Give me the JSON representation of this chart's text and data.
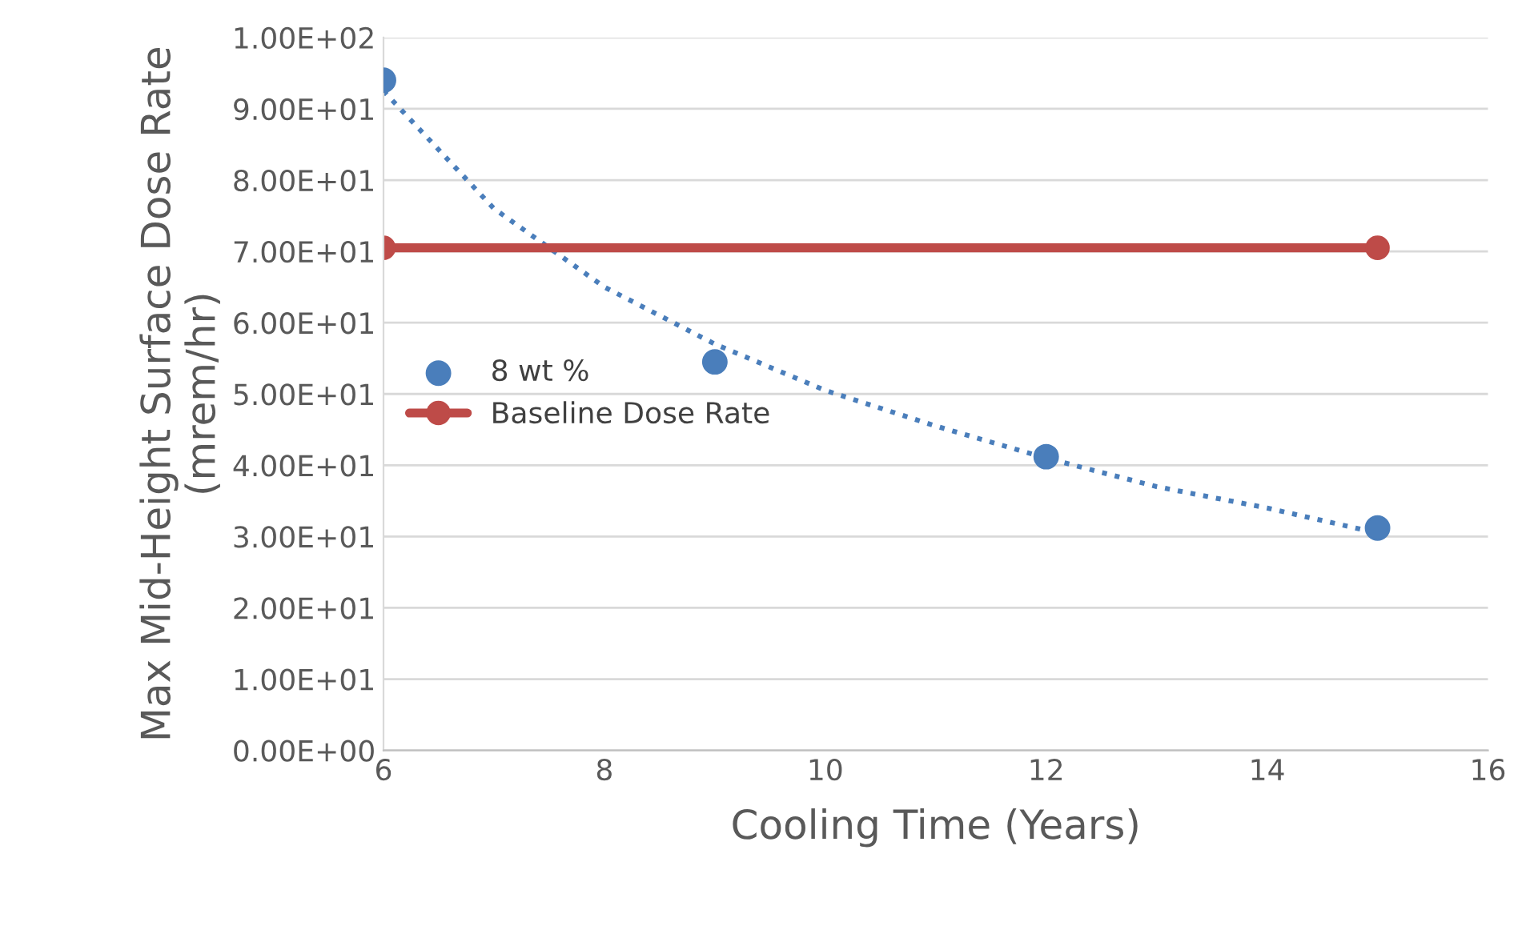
{
  "chart_data": {
    "type": "scatter",
    "xlabel": "Cooling Time (Years)",
    "ylabel": "Max Mid-Height Surface Dose Rate (mrem/hr)",
    "xlim": [
      6,
      16
    ],
    "xticks": [
      6,
      8,
      10,
      12,
      14,
      16
    ],
    "ylim": [
      0,
      100
    ],
    "yticks": [
      {
        "value": 0,
        "label": "0.00E+00"
      },
      {
        "value": 10,
        "label": "1.00E+01"
      },
      {
        "value": 20,
        "label": "2.00E+01"
      },
      {
        "value": 30,
        "label": "3.00E+01"
      },
      {
        "value": 40,
        "label": "4.00E+01"
      },
      {
        "value": 50,
        "label": "5.00E+01"
      },
      {
        "value": 60,
        "label": "6.00E+01"
      },
      {
        "value": 70,
        "label": "7.00E+01"
      },
      {
        "value": 80,
        "label": "8.00E+01"
      },
      {
        "value": 90,
        "label": "9.00E+01"
      },
      {
        "value": 100,
        "label": "1.00E+02"
      }
    ],
    "grid": "y",
    "legend": "center left",
    "series": [
      {
        "name": "8 wt %",
        "marker": "circle",
        "color": "#4a7ebb",
        "x": [
          6,
          9,
          12,
          15
        ],
        "values": [
          94,
          54.5,
          41.2,
          31.2
        ]
      },
      {
        "type": "line",
        "marker": "none",
        "line_style": "dotted",
        "color": "#4a7ebb",
        "x": [
          6,
          7,
          8,
          9,
          10,
          11,
          12,
          13,
          14,
          15
        ],
        "values": [
          92.5,
          76,
          65,
          57,
          50.5,
          45.5,
          41,
          37,
          34,
          30.5
        ]
      },
      {
        "name": "Baseline Dose Rate",
        "type": "line",
        "marker": "circle",
        "line_style": "solid",
        "color": "#be4b48",
        "x": [
          6,
          15
        ],
        "values": [
          70.5,
          70.5
        ]
      }
    ]
  }
}
